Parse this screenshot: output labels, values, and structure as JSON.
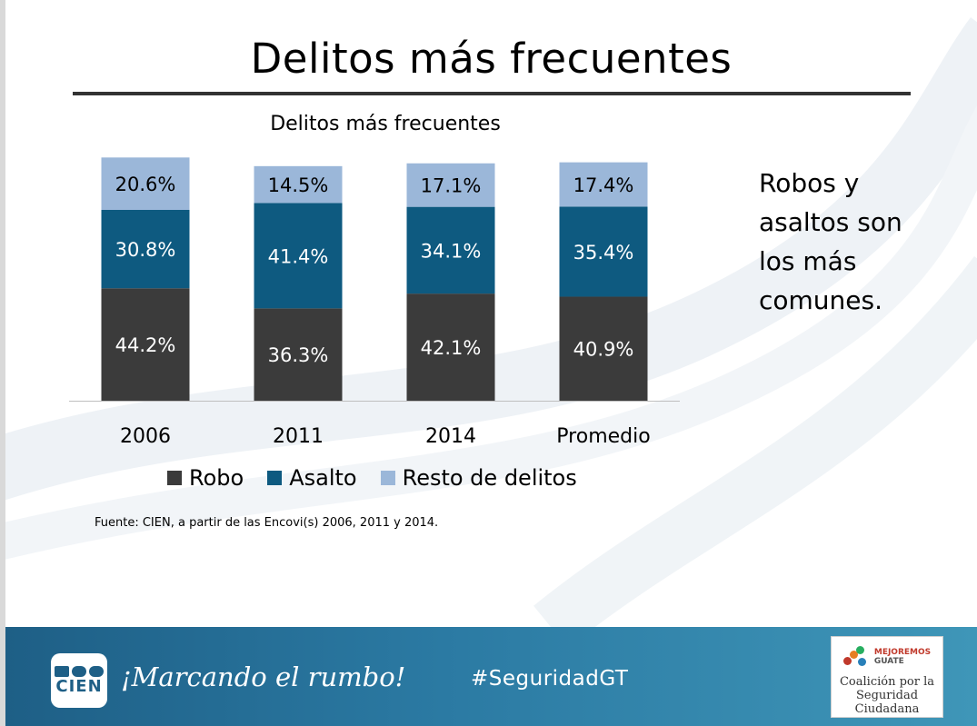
{
  "page": {
    "title": "Delitos más frecuentes",
    "source": "Fuente: CIEN, a partir de las Encovi(s) 2006, 2011 y 2014.",
    "side_note": [
      "Robos y",
      "asaltos son",
      "los más",
      "comunes."
    ]
  },
  "colors": {
    "robo": "#3b3b3b",
    "asalto": "#0e5a80",
    "resto": "#9bb7d9",
    "footer": "#2b7aa3"
  },
  "chart_data": {
    "type": "bar",
    "stacked": true,
    "title": "Delitos más frecuentes",
    "categories": [
      "2006",
      "2011",
      "2014",
      "Promedio"
    ],
    "series": [
      {
        "name": "Robo",
        "values": [
          44.2,
          36.3,
          42.1,
          40.9
        ],
        "labels": [
          "44.2%",
          "36.3%",
          "42.1%",
          "40.9%"
        ]
      },
      {
        "name": "Asalto",
        "values": [
          30.8,
          41.4,
          34.1,
          35.4
        ],
        "labels": [
          "30.8%",
          "41.4%",
          "34.1%",
          "35.4%"
        ]
      },
      {
        "name": "Resto de delitos",
        "values": [
          20.6,
          14.5,
          17.1,
          17.4
        ],
        "labels": [
          "20.6%",
          "14.5%",
          "17.1%",
          "17.4%"
        ]
      }
    ],
    "legend_position": "bottom",
    "grid": false
  },
  "footer": {
    "logo_text": "CIEN",
    "tagline": "¡Marcando el rumbo!",
    "hashtag": "#SeguridadGT",
    "partner_line1": "MEJOREMOS",
    "partner_line2": "GUATE",
    "partner_name_line1": "Coalición por la",
    "partner_name_line2": "Seguridad Ciudadana"
  }
}
